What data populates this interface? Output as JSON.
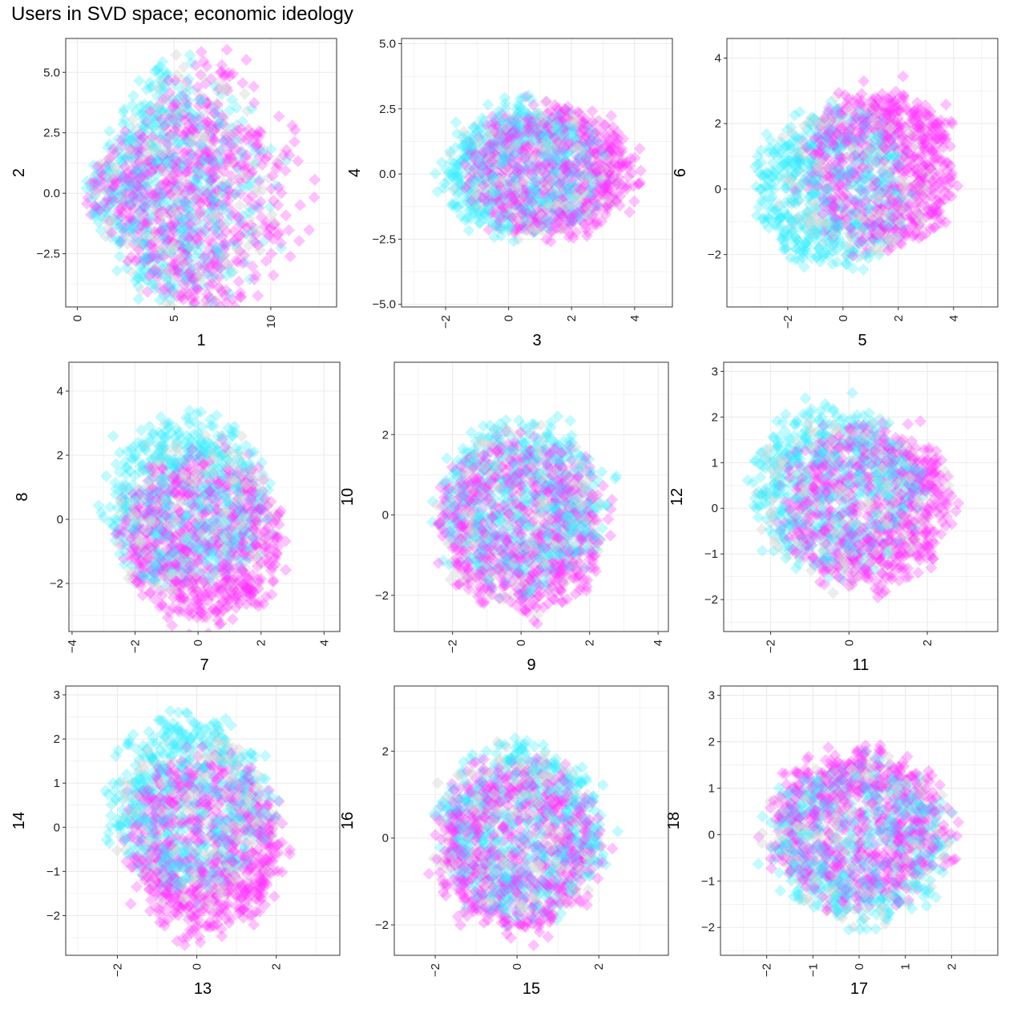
{
  "title": "Users in SVD space; economic ideology",
  "colors": {
    "magenta": "#ff33ff",
    "cyan": "#33f0ff",
    "grey": "#d6d6d6",
    "grid": "#ebebeb",
    "panel_border": "#333333",
    "background": "#ffffff"
  },
  "chart_data": [
    {
      "type": "scatter",
      "xlabel": "1",
      "ylabel": "2",
      "xlim": [
        -0.6,
        13.4
      ],
      "ylim": [
        -4.7,
        6.4
      ],
      "xticks": [
        {
          "v": 0,
          "label": "0"
        },
        {
          "v": 5,
          "label": "5"
        },
        {
          "v": 10,
          "label": "10"
        }
      ],
      "yticks": [
        {
          "v": -2.5,
          "label": "−2.5"
        },
        {
          "v": 0,
          "label": "0.0"
        },
        {
          "v": 2.5,
          "label": "2.5"
        },
        {
          "v": 5,
          "label": "5.0"
        }
      ],
      "cloud": {
        "shape": "fan",
        "apex": [
          0,
          0
        ],
        "cx": 6.5,
        "cy": 0.6,
        "rx": 5.2,
        "ry": 4.7,
        "magenta_shift": [
          1.5,
          -0.5
        ],
        "cyan_shift": [
          -1.5,
          0.3
        ]
      }
    },
    {
      "type": "scatter",
      "xlabel": "3",
      "ylabel": "4",
      "xlim": [
        -3.4,
        5.2
      ],
      "ylim": [
        -5.1,
        5.2
      ],
      "xticks": [
        {
          "v": -2,
          "label": "−2"
        },
        {
          "v": 0,
          "label": "0"
        },
        {
          "v": 2,
          "label": "2"
        },
        {
          "v": 4,
          "label": "4"
        }
      ],
      "yticks": [
        {
          "v": -5,
          "label": "−5.0"
        },
        {
          "v": -2.5,
          "label": "−2.5"
        },
        {
          "v": 0,
          "label": "0.0"
        },
        {
          "v": 2.5,
          "label": "2.5"
        },
        {
          "v": 5,
          "label": "5.0"
        }
      ],
      "cloud": {
        "shape": "ellipse",
        "cx": 0.9,
        "cy": 0.1,
        "rx": 3.0,
        "ry": 2.9,
        "magenta_shift": [
          0.6,
          0.0
        ],
        "cyan_shift": [
          -0.6,
          0.0
        ]
      }
    },
    {
      "type": "scatter",
      "xlabel": "5",
      "ylabel": "6",
      "xlim": [
        -4.2,
        5.6
      ],
      "ylim": [
        -3.6,
        4.6
      ],
      "xticks": [
        {
          "v": -2,
          "label": "−2"
        },
        {
          "v": 0,
          "label": "0"
        },
        {
          "v": 2,
          "label": "2"
        },
        {
          "v": 4,
          "label": "4"
        }
      ],
      "yticks": [
        {
          "v": -2,
          "label": "−2"
        },
        {
          "v": 0,
          "label": "0"
        },
        {
          "v": 2,
          "label": "2"
        },
        {
          "v": 4,
          "label": "4"
        }
      ],
      "cloud": {
        "shape": "ellipse",
        "cx": 0.5,
        "cy": 0.3,
        "rx": 3.1,
        "ry": 2.8,
        "magenta_shift": [
          1.3,
          0.4
        ],
        "cyan_shift": [
          -1.3,
          -0.4
        ]
      }
    },
    {
      "type": "scatter",
      "xlabel": "7",
      "ylabel": "8",
      "xlim": [
        -4.1,
        4.5
      ],
      "ylim": [
        -3.5,
        4.9
      ],
      "xticks": [
        {
          "v": -4,
          "label": "−4"
        },
        {
          "v": -2,
          "label": "−2"
        },
        {
          "v": 0,
          "label": "0"
        },
        {
          "v": 2,
          "label": "2"
        },
        {
          "v": 4,
          "label": "4"
        }
      ],
      "yticks": [
        {
          "v": -2,
          "label": "−2"
        },
        {
          "v": 0,
          "label": "0"
        },
        {
          "v": 2,
          "label": "2"
        },
        {
          "v": 4,
          "label": "4"
        }
      ],
      "cloud": {
        "shape": "ellipse",
        "cx": -0.1,
        "cy": 0.0,
        "rx": 2.9,
        "ry": 3.0,
        "magenta_shift": [
          0.4,
          -0.8
        ],
        "cyan_shift": [
          -0.4,
          0.8
        ]
      }
    },
    {
      "type": "scatter",
      "xlabel": "9",
      "ylabel": "10",
      "xlim": [
        -3.7,
        4.3
      ],
      "ylim": [
        -2.9,
        3.8
      ],
      "xticks": [
        {
          "v": -2,
          "label": "−2"
        },
        {
          "v": 0,
          "label": "0"
        },
        {
          "v": 2,
          "label": "2"
        },
        {
          "v": 4,
          "label": "4"
        }
      ],
      "yticks": [
        {
          "v": -2,
          "label": "−2"
        },
        {
          "v": 0,
          "label": "0"
        },
        {
          "v": 2,
          "label": "2"
        }
      ],
      "cloud": {
        "shape": "ellipse",
        "cx": 0.0,
        "cy": 0.0,
        "rx": 2.8,
        "ry": 2.5,
        "magenta_shift": [
          0.0,
          -0.3
        ],
        "cyan_shift": [
          0.0,
          0.3
        ]
      }
    },
    {
      "type": "scatter",
      "xlabel": "11",
      "ylabel": "12",
      "xlim": [
        -3.2,
        3.8
      ],
      "ylim": [
        -2.7,
        3.2
      ],
      "xticks": [
        {
          "v": -2,
          "label": "−2"
        },
        {
          "v": 0,
          "label": "0"
        },
        {
          "v": 2,
          "label": "2"
        }
      ],
      "yticks": [
        {
          "v": -2,
          "label": "−2"
        },
        {
          "v": -1,
          "label": "−1"
        },
        {
          "v": 0,
          "label": "0"
        },
        {
          "v": 1,
          "label": "1"
        },
        {
          "v": 2,
          "label": "2"
        },
        {
          "v": 3,
          "label": "3"
        }
      ],
      "cloud": {
        "shape": "ellipse",
        "cx": 0.0,
        "cy": 0.2,
        "rx": 2.5,
        "ry": 2.1,
        "magenta_shift": [
          0.6,
          -0.2
        ],
        "cyan_shift": [
          -0.5,
          0.4
        ]
      }
    },
    {
      "type": "scatter",
      "xlabel": "13",
      "ylabel": "14",
      "xlim": [
        -3.3,
        3.6
      ],
      "ylim": [
        -2.9,
        3.2
      ],
      "xticks": [
        {
          "v": -2,
          "label": "−2"
        },
        {
          "v": 0,
          "label": "0"
        },
        {
          "v": 2,
          "label": "2"
        }
      ],
      "yticks": [
        {
          "v": -2,
          "label": "−2"
        },
        {
          "v": -1,
          "label": "−1"
        },
        {
          "v": 0,
          "label": "0"
        },
        {
          "v": 1,
          "label": "1"
        },
        {
          "v": 2,
          "label": "2"
        },
        {
          "v": 3,
          "label": "3"
        }
      ],
      "cloud": {
        "shape": "ellipse",
        "cx": 0.0,
        "cy": 0.1,
        "rx": 2.3,
        "ry": 2.3,
        "magenta_shift": [
          0.3,
          -0.7
        ],
        "cyan_shift": [
          -0.3,
          0.6
        ]
      }
    },
    {
      "type": "scatter",
      "xlabel": "15",
      "ylabel": "16",
      "xlim": [
        -3.0,
        3.7
      ],
      "ylim": [
        -2.7,
        3.5
      ],
      "xticks": [
        {
          "v": -2,
          "label": "−2"
        },
        {
          "v": 0,
          "label": "0"
        },
        {
          "v": 2,
          "label": "2"
        }
      ],
      "yticks": [
        {
          "v": -2,
          "label": "−2"
        },
        {
          "v": 0,
          "label": "0"
        },
        {
          "v": 2,
          "label": "2"
        }
      ],
      "cloud": {
        "shape": "ellipse",
        "cx": 0.0,
        "cy": 0.0,
        "rx": 2.3,
        "ry": 2.3,
        "magenta_shift": [
          0.0,
          -0.3
        ],
        "cyan_shift": [
          0.2,
          0.3
        ]
      }
    },
    {
      "type": "scatter",
      "xlabel": "17",
      "ylabel": "18",
      "xlim": [
        -3.0,
        3.0
      ],
      "ylim": [
        -2.6,
        3.2
      ],
      "xticks": [
        {
          "v": -2,
          "label": "−2"
        },
        {
          "v": -1,
          "label": "−1"
        },
        {
          "v": 0,
          "label": "0"
        },
        {
          "v": 1,
          "label": "1"
        },
        {
          "v": 2,
          "label": "2"
        }
      ],
      "yticks": [
        {
          "v": -2,
          "label": "−2"
        },
        {
          "v": -1,
          "label": "−1"
        },
        {
          "v": 0,
          "label": "0"
        },
        {
          "v": 1,
          "label": "1"
        },
        {
          "v": 2,
          "label": "2"
        },
        {
          "v": 3,
          "label": "3"
        }
      ],
      "cloud": {
        "shape": "ellipse",
        "cx": 0.0,
        "cy": 0.0,
        "rx": 2.2,
        "ry": 2.0,
        "magenta_shift": [
          0.0,
          0.2
        ],
        "cyan_shift": [
          0.0,
          -0.2
        ]
      }
    }
  ]
}
